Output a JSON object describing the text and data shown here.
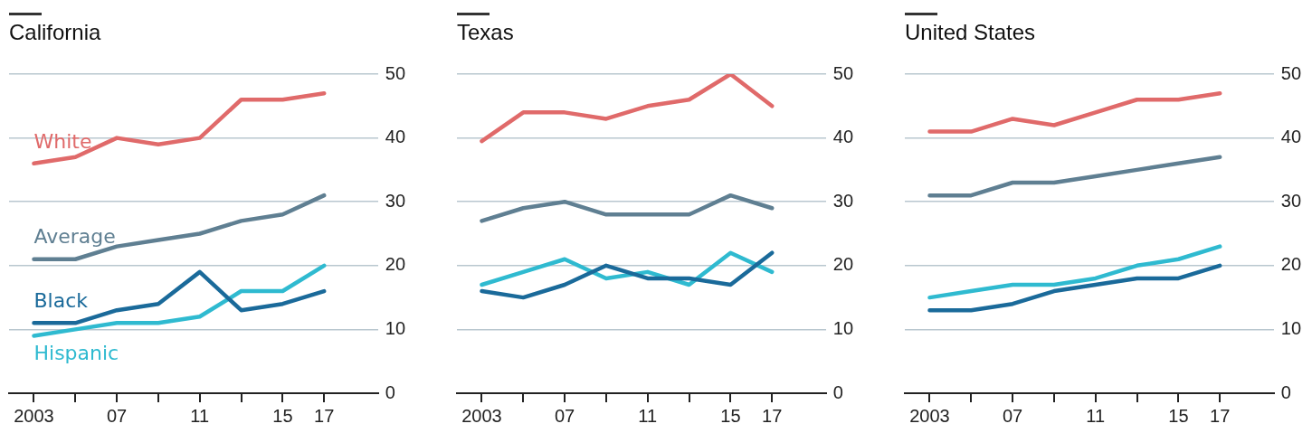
{
  "chart_data": [
    {
      "type": "line",
      "title": "California",
      "x": [
        2003,
        2005,
        2007,
        2009,
        2011,
        2013,
        2015,
        2017
      ],
      "xlim": [
        2001.8,
        2019.6
      ],
      "xticks": [
        {
          "value": 2003,
          "label": "2003"
        },
        {
          "value": 2005,
          "label": null
        },
        {
          "value": 2007,
          "label": "07"
        },
        {
          "value": 2009,
          "label": null
        },
        {
          "value": 2011,
          "label": "11"
        },
        {
          "value": 2013,
          "label": null
        },
        {
          "value": 2015,
          "label": "15"
        },
        {
          "value": 2017,
          "label": "17"
        }
      ],
      "ylim": [
        0,
        50
      ],
      "yticks": [
        0,
        10,
        20,
        30,
        40,
        50
      ],
      "grid": "y",
      "series": [
        {
          "name": "White",
          "color": "#e06a6a",
          "values": [
            36,
            37,
            40,
            39,
            40,
            46,
            46,
            47
          ]
        },
        {
          "name": "Average",
          "color": "#5f7f92",
          "values": [
            21,
            21,
            23,
            24,
            25,
            27,
            28,
            31
          ]
        },
        {
          "name": "Black",
          "color": "#1a6a9a",
          "values": [
            11,
            11,
            13,
            14,
            19,
            13,
            14,
            16
          ]
        },
        {
          "name": "Hispanic",
          "color": "#2fbad0",
          "values": [
            9,
            10,
            11,
            11,
            12,
            16,
            16,
            20
          ]
        }
      ]
    },
    {
      "type": "line",
      "title": "Texas",
      "x": [
        2003,
        2005,
        2007,
        2009,
        2011,
        2013,
        2015,
        2017
      ],
      "xlim": [
        2001.8,
        2019.6
      ],
      "xticks": [
        {
          "value": 2003,
          "label": "2003"
        },
        {
          "value": 2005,
          "label": null
        },
        {
          "value": 2007,
          "label": "07"
        },
        {
          "value": 2009,
          "label": null
        },
        {
          "value": 2011,
          "label": "11"
        },
        {
          "value": 2013,
          "label": null
        },
        {
          "value": 2015,
          "label": "15"
        },
        {
          "value": 2017,
          "label": "17"
        }
      ],
      "ylim": [
        0,
        50
      ],
      "yticks": [
        0,
        10,
        20,
        30,
        40,
        50
      ],
      "grid": "y",
      "series": [
        {
          "color": "#e06a6a",
          "values": [
            39.5,
            44,
            44,
            43,
            45,
            46,
            50,
            45
          ]
        },
        {
          "color": "#5f7f92",
          "values": [
            27,
            29,
            30,
            28,
            28,
            28,
            31,
            29
          ]
        },
        {
          "color": "#1a6a9a",
          "values": [
            16,
            15,
            17,
            20,
            18,
            18,
            17,
            22
          ]
        },
        {
          "color": "#2fbad0",
          "values": [
            17,
            19,
            21,
            18,
            19,
            17,
            22,
            19
          ]
        }
      ]
    },
    {
      "type": "line",
      "title": "United States",
      "x": [
        2003,
        2005,
        2007,
        2009,
        2011,
        2013,
        2015,
        2017
      ],
      "xlim": [
        2001.8,
        2019.6
      ],
      "xticks": [
        {
          "value": 2003,
          "label": "2003"
        },
        {
          "value": 2005,
          "label": null
        },
        {
          "value": 2007,
          "label": "07"
        },
        {
          "value": 2009,
          "label": null
        },
        {
          "value": 2011,
          "label": "11"
        },
        {
          "value": 2013,
          "label": null
        },
        {
          "value": 2015,
          "label": "15"
        },
        {
          "value": 2017,
          "label": "17"
        }
      ],
      "ylim": [
        0,
        50
      ],
      "yticks": [
        0,
        10,
        20,
        30,
        40,
        50
      ],
      "grid": "y",
      "series": [
        {
          "color": "#e06a6a",
          "values": [
            41,
            41,
            43,
            42,
            44,
            46,
            46,
            47
          ]
        },
        {
          "color": "#5f7f92",
          "values": [
            31,
            31,
            33,
            33,
            34,
            35,
            36,
            37
          ]
        },
        {
          "color": "#1a6a9a",
          "values": [
            13,
            13,
            14,
            16,
            17,
            18,
            18,
            20
          ]
        },
        {
          "color": "#2fbad0",
          "values": [
            15,
            16,
            17,
            17,
            18,
            20,
            21,
            23
          ]
        }
      ]
    }
  ]
}
